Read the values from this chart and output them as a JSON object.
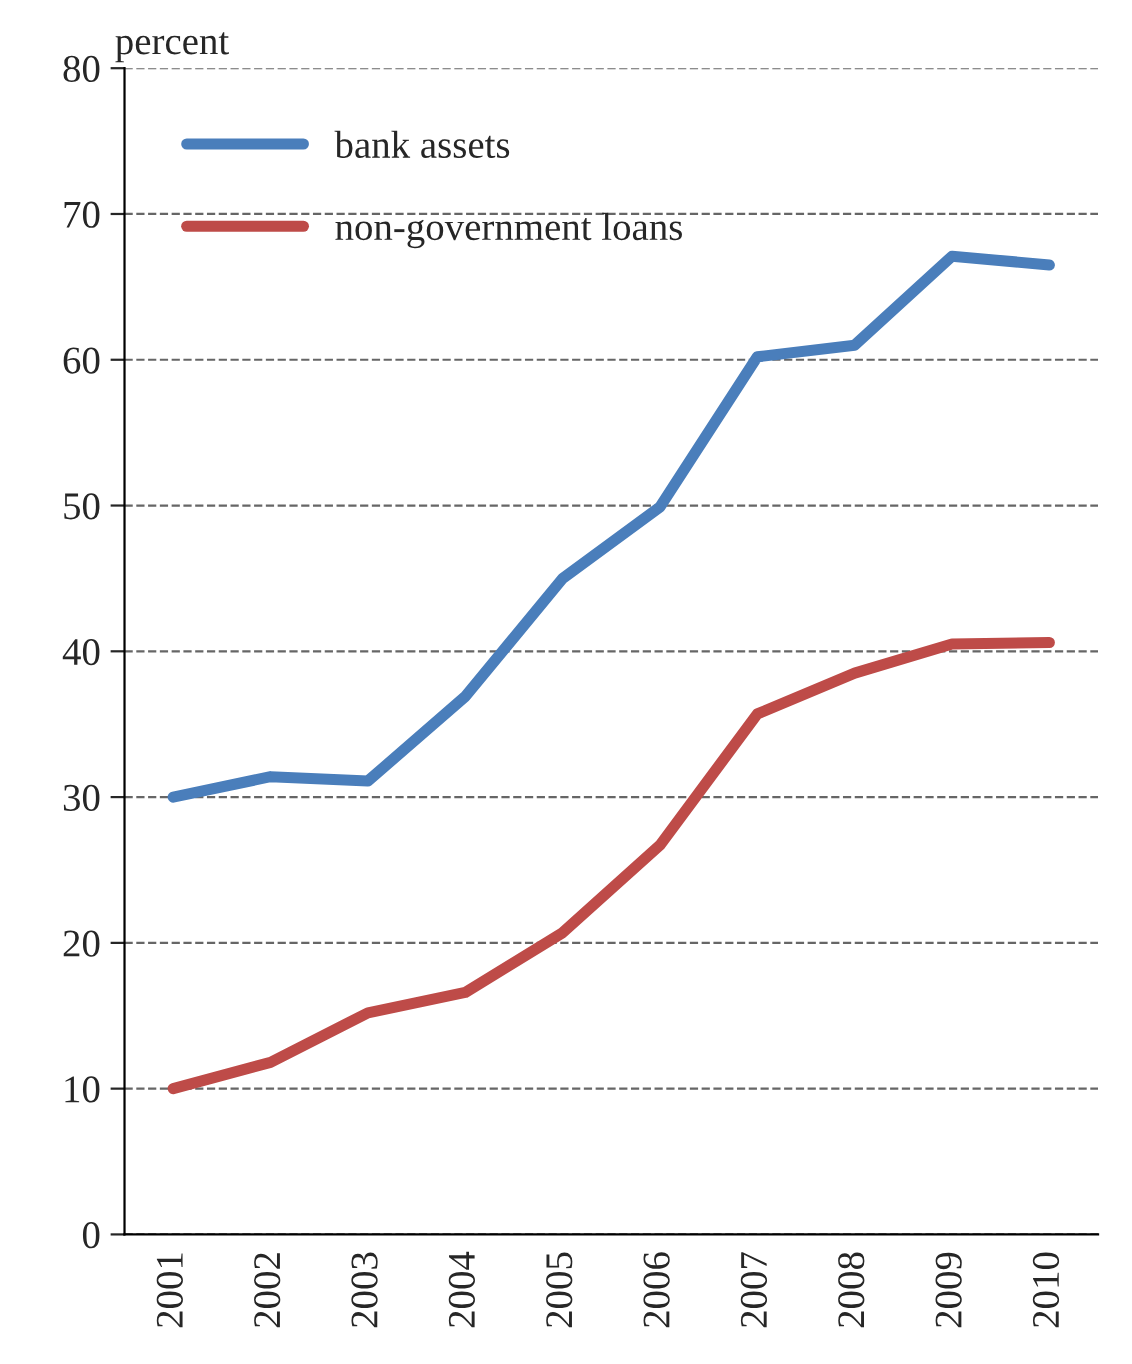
{
  "chart_data": {
    "type": "line",
    "ylabel": "percent",
    "categories": [
      "2001",
      "2002",
      "2003",
      "2004",
      "2005",
      "2006",
      "2007",
      "2008",
      "2009",
      "2010"
    ],
    "series": [
      {
        "name": "bank assets",
        "color": "#4a7ebb",
        "values": [
          30.0,
          31.4,
          31.1,
          36.9,
          45.0,
          49.9,
          60.2,
          61.0,
          67.1,
          66.5
        ]
      },
      {
        "name": "non-government loans",
        "color": "#be4b48",
        "values": [
          10.0,
          11.8,
          15.2,
          16.6,
          20.7,
          26.7,
          35.7,
          38.5,
          40.5,
          40.6
        ]
      }
    ],
    "ylim": [
      0,
      80
    ],
    "yticks": [
      0,
      10,
      20,
      30,
      40,
      50,
      60,
      70,
      80
    ],
    "grid": "y",
    "legend": "top left",
    "marker": "none",
    "line_style": "solid"
  }
}
